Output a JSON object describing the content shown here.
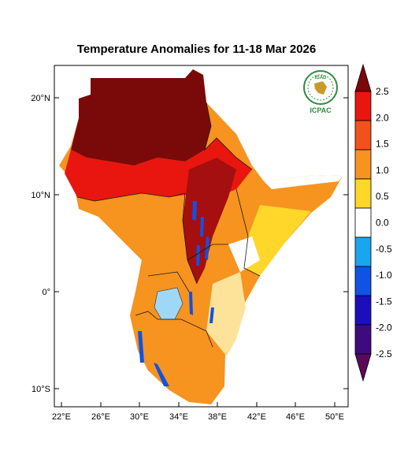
{
  "title": "Temperature Anomalies for 11-18 Mar 2026",
  "logo": {
    "top_text": "IGAD",
    "bottom_text": "ICPAC"
  },
  "lat_ticks": [
    {
      "lat": 20,
      "label": "20°N"
    },
    {
      "lat": 10,
      "label": "10°N"
    },
    {
      "lat": 0,
      "label": "0°"
    },
    {
      "lat": -10,
      "label": "10°S"
    }
  ],
  "lon_ticks": [
    {
      "lon": 22,
      "label": "22°E"
    },
    {
      "lon": 26,
      "label": "26°E"
    },
    {
      "lon": 30,
      "label": "30°E"
    },
    {
      "lon": 34,
      "label": "34°E"
    },
    {
      "lon": 38,
      "label": "38°E"
    },
    {
      "lon": 42,
      "label": "42°E"
    },
    {
      "lon": 46,
      "label": "46°E"
    },
    {
      "lon": 50,
      "label": "50°E"
    }
  ],
  "colorbar": {
    "labels": [
      "2.5",
      "2.0",
      "1.5",
      "1.0",
      "0.5",
      "0.0",
      "-0.5",
      "-1.0",
      "-1.5",
      "-2.0",
      "-2.5"
    ],
    "colors": [
      "#7a0a0a",
      "#e8160f",
      "#f2511b",
      "#f7931f",
      "#fed72a",
      "#ffffff",
      "#1aa6ee",
      "#1052e3",
      "#1a0ebd",
      "#3e0b7e",
      "#5a0a5a"
    ]
  }
}
